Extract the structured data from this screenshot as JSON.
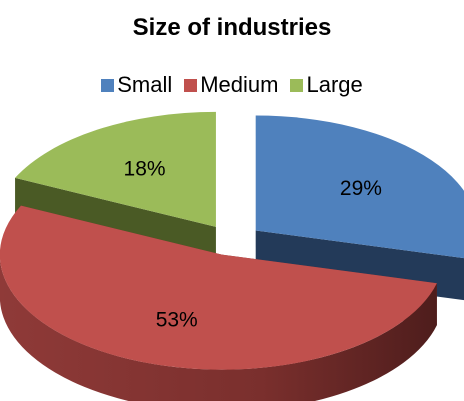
{
  "chart_data": {
    "type": "pie",
    "title": "Size of industries",
    "legend_position": "top",
    "exploded": true,
    "three_d": true,
    "slices": [
      {
        "name": "Small",
        "value": 29,
        "label": "29%",
        "color": "#4f81bd",
        "side_color": "#233a59"
      },
      {
        "name": "Medium",
        "value": 53,
        "label": "53%",
        "color": "#c0504d",
        "side_color": "#7a2f2d"
      },
      {
        "name": "Large",
        "value": 18,
        "label": "18%",
        "color": "#9bbb59",
        "side_color": "#4a5a25"
      }
    ]
  }
}
